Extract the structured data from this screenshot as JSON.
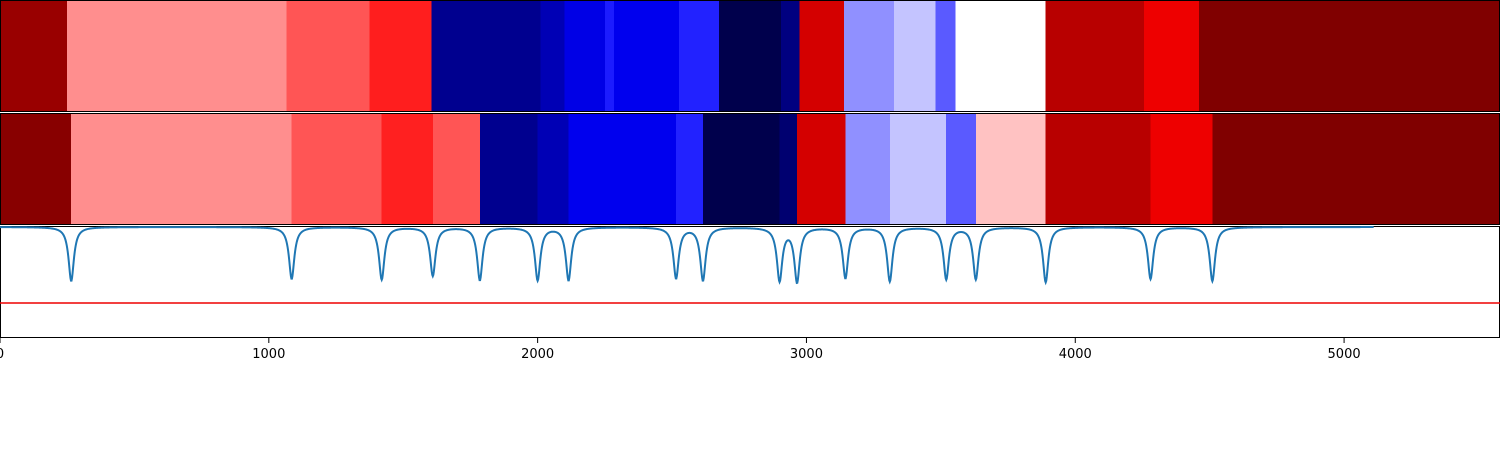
{
  "chart_data": {
    "type": "heatmap",
    "xlim": [
      0,
      5580
    ],
    "x_ticks": [
      0,
      1000,
      2000,
      3000,
      4000,
      5000
    ],
    "x_tick_labels": [
      "0",
      "1000",
      "2000",
      "3000",
      "4000",
      "5000"
    ],
    "rows": [
      {
        "segments": [
          {
            "start": 0,
            "end": 250,
            "color": "#990000"
          },
          {
            "start": 250,
            "end": 1065,
            "color": "#ff8e8e"
          },
          {
            "start": 1065,
            "end": 1375,
            "color": "#ff5555"
          },
          {
            "start": 1375,
            "end": 1605,
            "color": "#ff1e1e"
          },
          {
            "start": 1605,
            "end": 2010,
            "color": "#00008f"
          },
          {
            "start": 2010,
            "end": 2100,
            "color": "#0000b5"
          },
          {
            "start": 2100,
            "end": 2250,
            "color": "#0000e6"
          },
          {
            "start": 2250,
            "end": 2285,
            "color": "#1c1cff"
          },
          {
            "start": 2285,
            "end": 2525,
            "color": "#0000ee"
          },
          {
            "start": 2525,
            "end": 2675,
            "color": "#2222ff"
          },
          {
            "start": 2675,
            "end": 2905,
            "color": "#00004c"
          },
          {
            "start": 2905,
            "end": 2975,
            "color": "#000080"
          },
          {
            "start": 2975,
            "end": 3140,
            "color": "#d40000"
          },
          {
            "start": 3140,
            "end": 3325,
            "color": "#9090ff"
          },
          {
            "start": 3325,
            "end": 3480,
            "color": "#c4c4ff"
          },
          {
            "start": 3480,
            "end": 3555,
            "color": "#5a5aff"
          },
          {
            "start": 3555,
            "end": 3890,
            "color": "#ffffff"
          },
          {
            "start": 3890,
            "end": 4255,
            "color": "#b80000"
          },
          {
            "start": 4255,
            "end": 4460,
            "color": "#ee0000"
          },
          {
            "start": 4460,
            "end": 5580,
            "color": "#800000"
          }
        ]
      },
      {
        "segments": [
          {
            "start": 0,
            "end": 265,
            "color": "#880000"
          },
          {
            "start": 265,
            "end": 1085,
            "color": "#ff8e8e"
          },
          {
            "start": 1085,
            "end": 1420,
            "color": "#ff5555"
          },
          {
            "start": 1420,
            "end": 1610,
            "color": "#ff2020"
          },
          {
            "start": 1610,
            "end": 1785,
            "color": "#ff5555"
          },
          {
            "start": 1785,
            "end": 2000,
            "color": "#00008f"
          },
          {
            "start": 2000,
            "end": 2115,
            "color": "#0000b5"
          },
          {
            "start": 2115,
            "end": 2515,
            "color": "#0000ee"
          },
          {
            "start": 2515,
            "end": 2615,
            "color": "#2222ff"
          },
          {
            "start": 2615,
            "end": 2900,
            "color": "#00004c"
          },
          {
            "start": 2900,
            "end": 2965,
            "color": "#000070"
          },
          {
            "start": 2965,
            "end": 3145,
            "color": "#d40000"
          },
          {
            "start": 3145,
            "end": 3310,
            "color": "#9090ff"
          },
          {
            "start": 3310,
            "end": 3520,
            "color": "#c4c4ff"
          },
          {
            "start": 3520,
            "end": 3630,
            "color": "#5a5aff"
          },
          {
            "start": 3630,
            "end": 3890,
            "color": "#ffc2c2"
          },
          {
            "start": 3890,
            "end": 4280,
            "color": "#b80000"
          },
          {
            "start": 4280,
            "end": 4510,
            "color": "#ee0000"
          },
          {
            "start": 4510,
            "end": 5580,
            "color": "#800000"
          }
        ]
      }
    ],
    "signal": {
      "color": "#1f77b4",
      "dips": [
        {
          "x": 265,
          "depth": 1.0
        },
        {
          "x": 1085,
          "depth": 0.96
        },
        {
          "x": 1420,
          "depth": 0.97
        },
        {
          "x": 1610,
          "depth": 0.9
        },
        {
          "x": 1785,
          "depth": 0.98
        },
        {
          "x": 2000,
          "depth": 0.98
        },
        {
          "x": 2115,
          "depth": 0.98
        },
        {
          "x": 2515,
          "depth": 0.94
        },
        {
          "x": 2615,
          "depth": 0.98
        },
        {
          "x": 2900,
          "depth": 0.98
        },
        {
          "x": 2965,
          "depth": 1.0
        },
        {
          "x": 3145,
          "depth": 0.94
        },
        {
          "x": 3310,
          "depth": 1.0
        },
        {
          "x": 3520,
          "depth": 0.96
        },
        {
          "x": 3630,
          "depth": 0.96
        },
        {
          "x": 3890,
          "depth": 1.02
        },
        {
          "x": 4280,
          "depth": 0.96
        },
        {
          "x": 4510,
          "depth": 1.0
        }
      ]
    },
    "threshold": {
      "color": "#ee0000"
    },
    "grid": false
  }
}
